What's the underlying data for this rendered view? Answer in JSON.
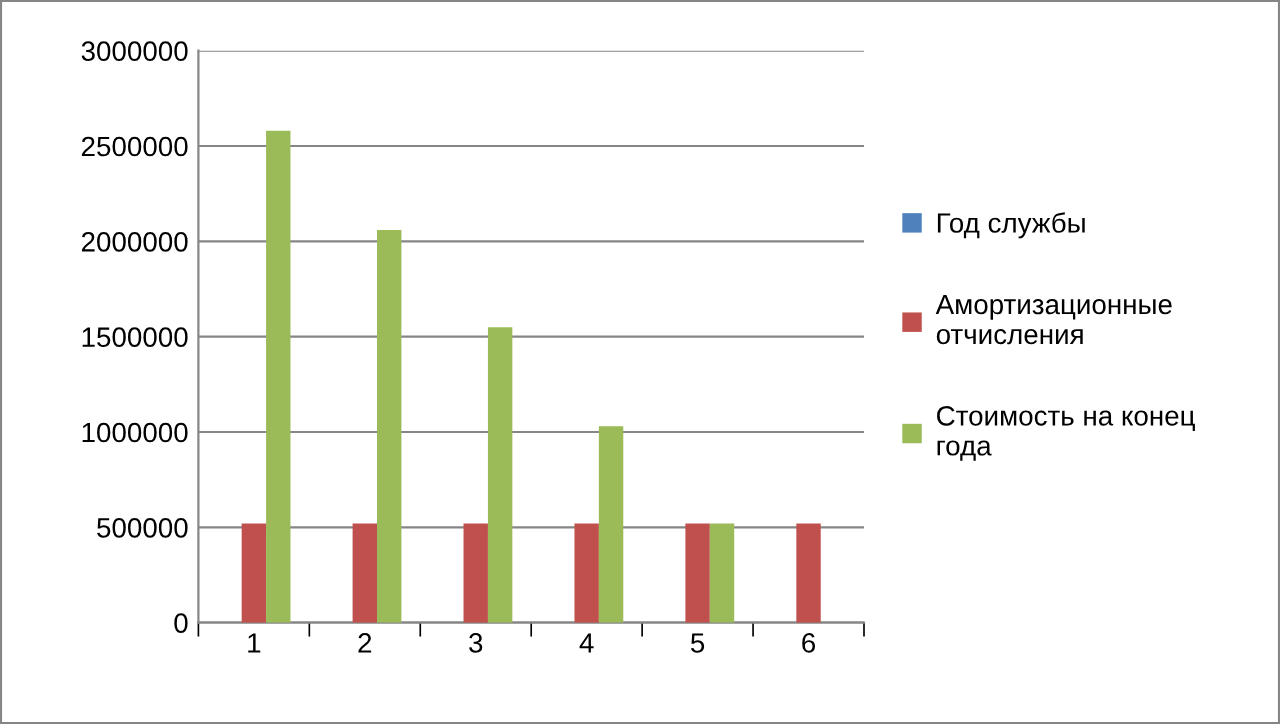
{
  "chart_data": {
    "type": "bar",
    "categories": [
      "1",
      "2",
      "3",
      "4",
      "5",
      "6"
    ],
    "series": [
      {
        "name": "Год службы",
        "color": "#4f81bd",
        "values": [
          0,
          0,
          0,
          0,
          0,
          0
        ]
      },
      {
        "name": "Амортизационные отчисления",
        "color": "#c0504d",
        "values": [
          520000,
          520000,
          520000,
          520000,
          520000,
          520000
        ]
      },
      {
        "name": "Стоимость на конец года",
        "color": "#9bbb59",
        "values": [
          2580000,
          2060000,
          1550000,
          1030000,
          520000,
          0
        ]
      }
    ],
    "ylim": [
      0,
      3000000
    ],
    "yticks": [
      0,
      500000,
      1000000,
      1500000,
      2000000,
      2500000,
      3000000
    ],
    "grid": "y",
    "legend": "right"
  }
}
